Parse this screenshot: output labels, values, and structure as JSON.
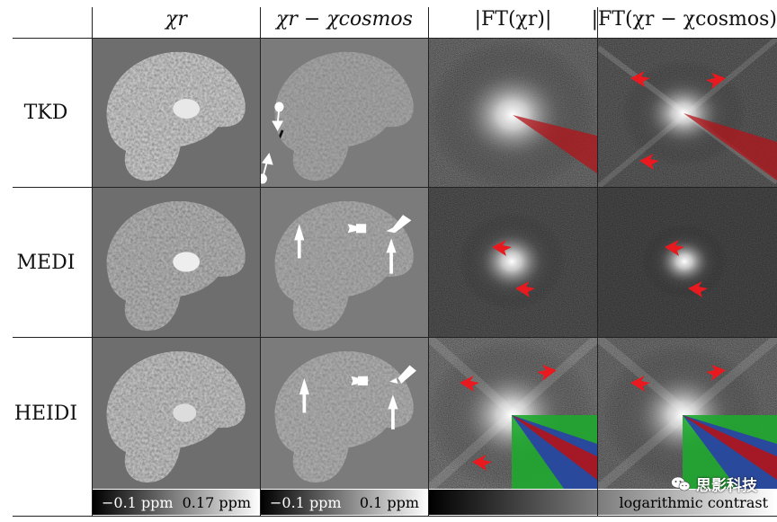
{
  "columns": {
    "chi_r": "χr",
    "chi_diff": "χr − χcosmos",
    "ft_chi_r": "|FT(χr)|",
    "ft_chi_diff": "|FT(χr − χcosmos)|"
  },
  "rows": [
    "TKD",
    "MEDI",
    "HEIDI"
  ],
  "colorbars": {
    "chi_r_min": "−0.1 ppm",
    "chi_r_max": "0.17 ppm",
    "diff_min": "−0.1 ppm",
    "diff_max": "0.1 ppm",
    "ft_label": "logarithmic contrast"
  },
  "watermark": "思影科技",
  "colors": {
    "red_marker": "#e8191f",
    "cone_red": "#b3141a",
    "cone_green": "#1fa830",
    "cone_blue": "#2a3fa8",
    "arrow_white": "#ffffff"
  }
}
